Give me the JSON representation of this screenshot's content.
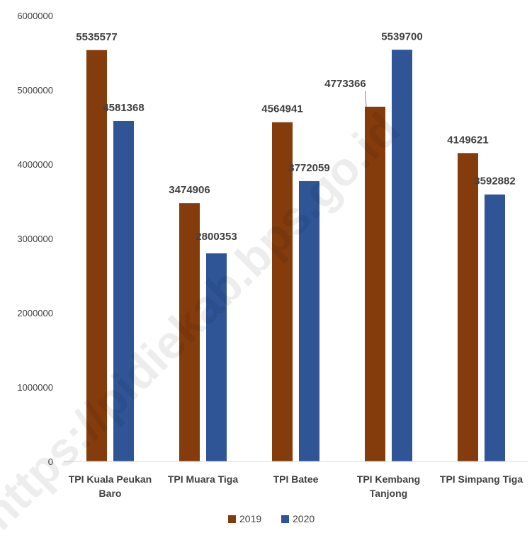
{
  "watermark": "https://pidiekab.bps.go.id",
  "colors": {
    "s2019": "#843C0C",
    "s2020": "#2F5597",
    "axis": "#D9D9D9",
    "text": "#404040"
  },
  "chart_data": {
    "type": "bar",
    "title": "",
    "xlabel": "",
    "ylabel": "",
    "ylim": [
      0,
      6000000
    ],
    "yticks": [
      "0",
      "1000000",
      "2000000",
      "3000000",
      "4000000",
      "5000000",
      "6000000"
    ],
    "grid": false,
    "legend_position": "bottom",
    "categories": [
      [
        "TPI Kuala Peukan",
        "Baro"
      ],
      [
        "TPI Muara Tiga"
      ],
      [
        "TPI Batee"
      ],
      [
        "TPI Kembang",
        "Tanjong"
      ],
      [
        "TPI Simpang Tiga"
      ]
    ],
    "series": [
      {
        "name": "2019",
        "values": [
          5535577,
          3474906,
          4564941,
          4773366,
          4149621
        ]
      },
      {
        "name": "2020",
        "values": [
          4581368,
          2800353,
          3772059,
          5539700,
          3592882
        ]
      }
    ]
  }
}
